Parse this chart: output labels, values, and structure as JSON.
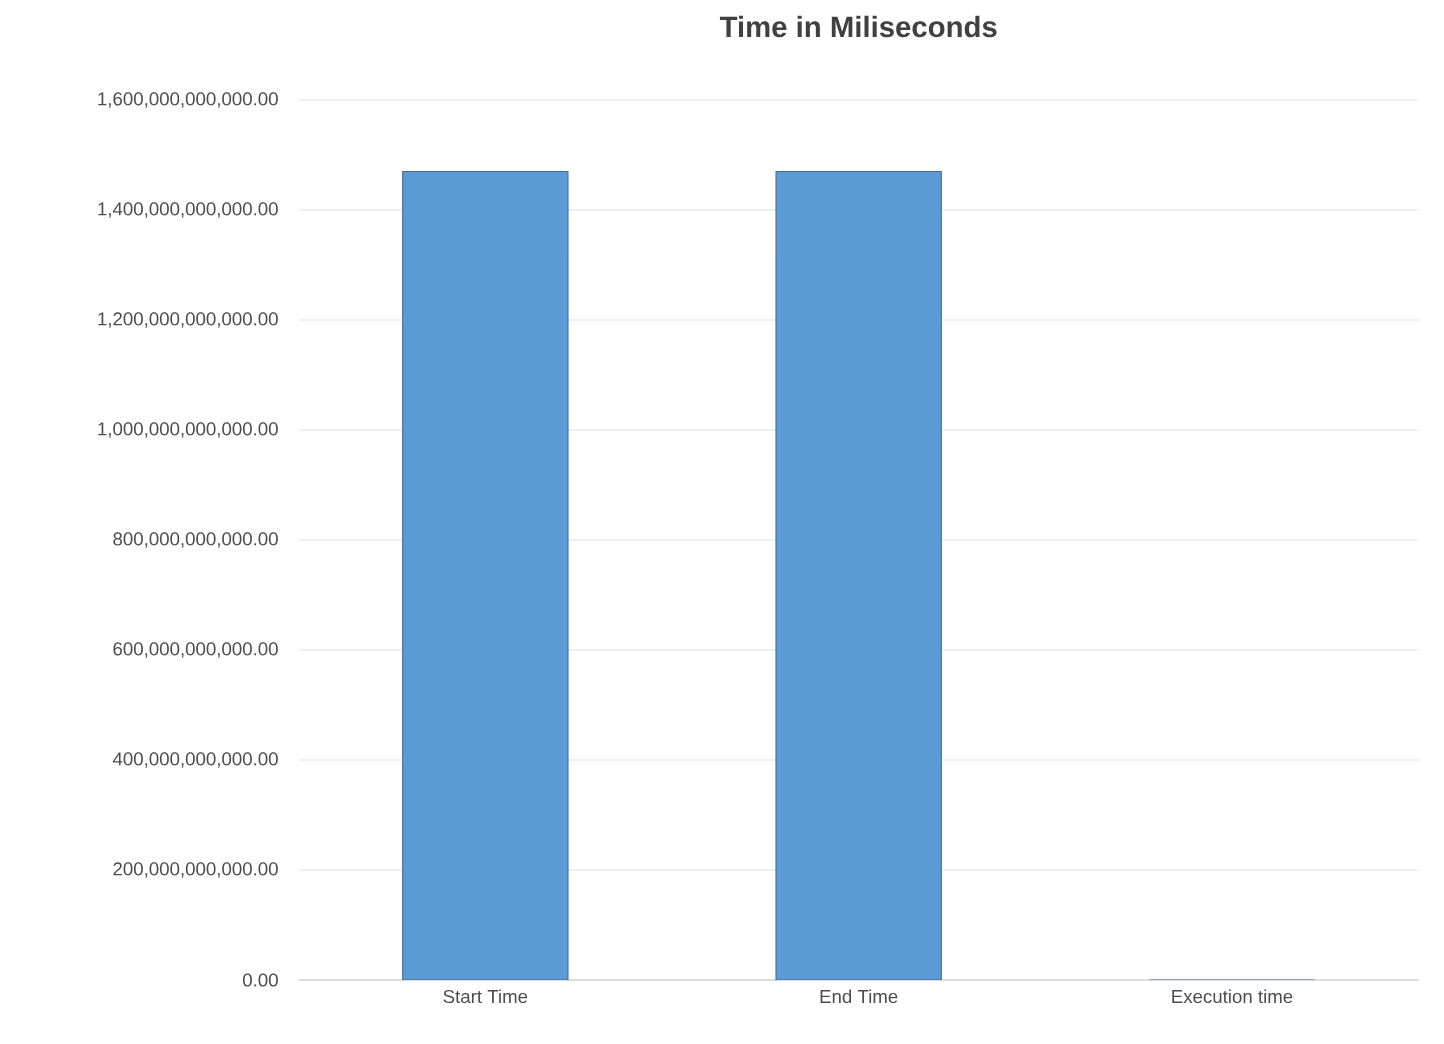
{
  "chart_data": {
    "type": "bar",
    "title": "Time in Miliseconds",
    "categories": [
      "Start Time",
      "End Time",
      "Execution time"
    ],
    "values": [
      1470000000000,
      1470000000000,
      0
    ],
    "color": "#5b9bd5",
    "ylim": [
      0,
      1600000000000
    ],
    "yticks": [
      {
        "value": 0,
        "label": "0.00"
      },
      {
        "value": 200000000000,
        "label": "200,000,000,000.00"
      },
      {
        "value": 400000000000,
        "label": "400,000,000,000.00"
      },
      {
        "value": 600000000000,
        "label": "600,000,000,000.00"
      },
      {
        "value": 800000000000,
        "label": "800,000,000,000.00"
      },
      {
        "value": 1000000000000,
        "label": "1,000,000,000,000.00"
      },
      {
        "value": 1200000000000,
        "label": "1,200,000,000,000.00"
      },
      {
        "value": 1400000000000,
        "label": "1,400,000,000,000.00"
      },
      {
        "value": 1600000000000,
        "label": "1,600,000,000,000.00"
      }
    ],
    "grid": "y"
  }
}
